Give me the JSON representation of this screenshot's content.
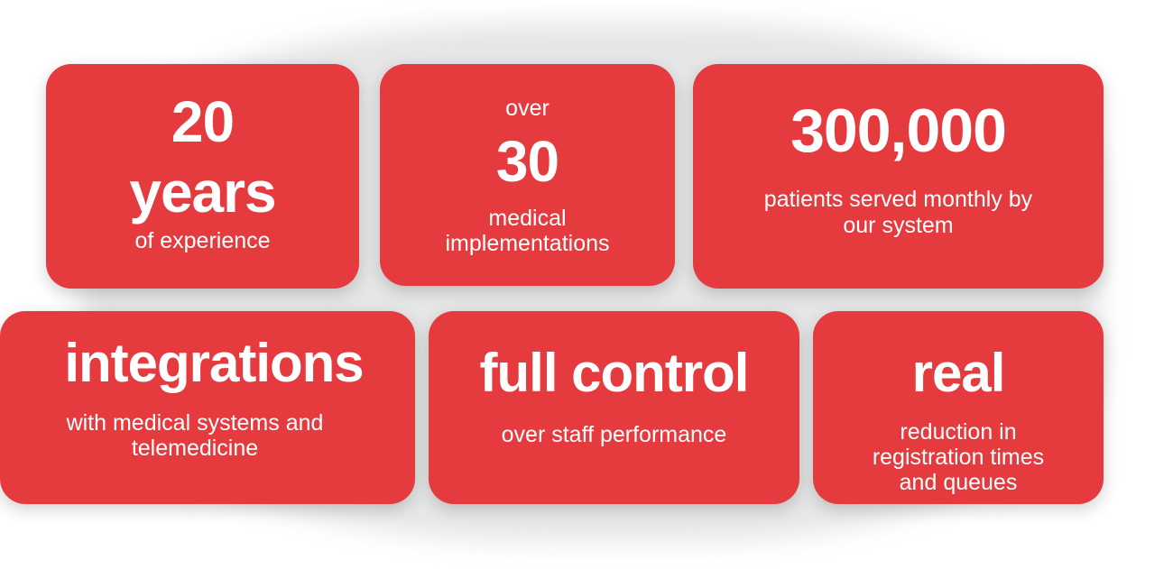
{
  "accent_color": "#e53a3e",
  "cards": [
    {
      "big": [
        "20",
        "years"
      ],
      "small": [
        "of experience"
      ]
    },
    {
      "pre": "over",
      "big": [
        "30"
      ],
      "small": [
        "medical",
        "implementations"
      ]
    },
    {
      "big": [
        "300,000"
      ],
      "small": [
        "patients served monthly by",
        "our system"
      ]
    },
    {
      "big": [
        "integrations"
      ],
      "small": [
        "with medical systems and",
        "telemedicine"
      ]
    },
    {
      "big": [
        "full control"
      ],
      "small": [
        "over staff performance"
      ]
    },
    {
      "big": [
        "real"
      ],
      "small": [
        "reduction in",
        "registration times",
        "and queues"
      ]
    }
  ]
}
